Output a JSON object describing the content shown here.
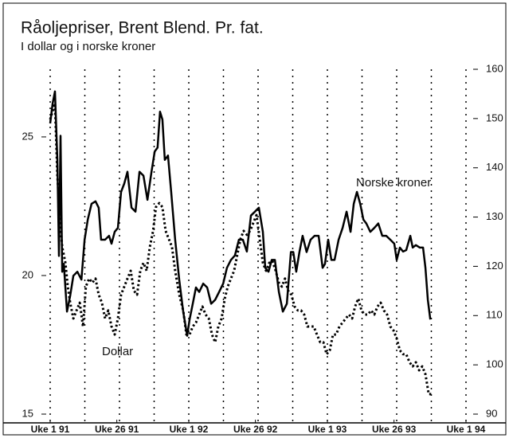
{
  "chart_data": {
    "type": "line",
    "title": "Råoljepriser, Brent Blend. Pr. fat.",
    "subtitle": "I dollar og i norske kroner",
    "xlim": [
      0,
      156
    ],
    "xticks": [
      {
        "value": 0,
        "label": "Uke 1 91"
      },
      {
        "value": 25,
        "label": "Uke 26 91"
      },
      {
        "value": 52,
        "label": "Uke 1 92"
      },
      {
        "value": 77,
        "label": "Uke 26 92"
      },
      {
        "value": 104,
        "label": "Uke 1 93"
      },
      {
        "value": 129,
        "label": "Uke 26 93"
      },
      {
        "value": 156,
        "label": "Uke 1 94"
      }
    ],
    "xgrid": [
      0,
      13,
      26,
      39,
      52,
      65,
      78,
      91,
      104,
      117,
      130,
      143,
      156
    ],
    "ylim": [
      15,
      27.44
    ],
    "yticks": [
      15,
      20,
      25
    ],
    "y2lim": [
      90,
      160
    ],
    "y2ticks": [
      90,
      100,
      110,
      120,
      130,
      140,
      150,
      160
    ],
    "annotations": [
      "Norske kroner",
      "Dollar"
    ],
    "series": [
      {
        "name": "Norske kroner",
        "color": "#000000",
        "style": "solid",
        "axis": "y2",
        "x": [
          0,
          0.9,
          1.8,
          2.7,
          3.3,
          3.9,
          4.5,
          5.1,
          6.3,
          7.5,
          8.7,
          10.2,
          11.7,
          12.9,
          14.1,
          15.5,
          17,
          18.2,
          19.1,
          20.6,
          22.1,
          23,
          24.2,
          25.4,
          26.6,
          27.8,
          29,
          30.5,
          32,
          33.5,
          35,
          36.5,
          38,
          39.2,
          40.3,
          41.2,
          42.1,
          43,
          44.2,
          45.4,
          46.9,
          48.4,
          49.9,
          51.4,
          52.3,
          53.5,
          54.7,
          55.9,
          57.4,
          58.9,
          60.4,
          61.9,
          63.4,
          64.9,
          66.3,
          67.8,
          69.3,
          70.8,
          72.3,
          73.8,
          75.3,
          76.8,
          78.3,
          79.8,
          80.7,
          81.9,
          83.1,
          84.3,
          85.8,
          87.3,
          88.8,
          90.3,
          91.2,
          92.3,
          93.5,
          94.7,
          96.2,
          97.7,
          99.2,
          100.7,
          102.2,
          103.1,
          104.3,
          105.5,
          106.7,
          108.2,
          109.7,
          111.2,
          112.7,
          113.9,
          115.1,
          116.3,
          117.5,
          118.6,
          120.1,
          121.6,
          123.1,
          124.6,
          126.1,
          127.6,
          129.1,
          130,
          131.2,
          132.4,
          133.6,
          135.1,
          136,
          137.2,
          138.7,
          139.9,
          140.8,
          141.7,
          142.6
        ],
        "values": [
          149,
          153,
          155.5,
          141.6,
          122.1,
          146.5,
          118.9,
          120.5,
          110.8,
          114,
          118.1,
          118.9,
          117.3,
          125.4,
          129.5,
          132.7,
          133.2,
          131.9,
          125.4,
          125.4,
          126.2,
          124.6,
          127,
          127.8,
          135.1,
          136.8,
          139.2,
          131.9,
          131.1,
          139.2,
          138.4,
          133.5,
          139.2,
          143.3,
          144.1,
          151.4,
          149.8,
          141.6,
          142.5,
          135.1,
          125.4,
          117.3,
          110.8,
          105.9,
          109.2,
          112.4,
          115.7,
          114.8,
          116.5,
          115.7,
          112.4,
          113.2,
          114.8,
          116.5,
          119.7,
          121.3,
          122.2,
          125.4,
          125.4,
          123,
          130.3,
          131.1,
          131.9,
          127,
          119.7,
          118.9,
          121.3,
          121.3,
          114.8,
          110.8,
          112.4,
          122.9,
          122.9,
          118.9,
          122.9,
          126.2,
          122.9,
          125.4,
          126.2,
          126.2,
          119.7,
          120.5,
          125.4,
          121.3,
          121.3,
          125.4,
          127.8,
          131.1,
          127,
          132.7,
          135.1,
          132.7,
          129.5,
          128.7,
          127,
          127.8,
          128.7,
          126.2,
          126.2,
          125.4,
          124.6,
          121.3,
          123.8,
          123,
          123.3,
          126.2,
          123.8,
          124.3,
          123.8,
          123.8,
          119.7,
          113.2,
          109.2
        ]
      },
      {
        "name": "Dollar",
        "color": "#000000",
        "style": "dotted",
        "axis": "y",
        "x": [
          0,
          0.9,
          1.8,
          2.7,
          3.6,
          4.5,
          5.7,
          6.6,
          7.5,
          8.7,
          9.9,
          11.1,
          12.3,
          13.4,
          14.6,
          15.8,
          17,
          18.2,
          19.4,
          20.6,
          21.8,
          23,
          24.2,
          25.4,
          26.6,
          27.8,
          29,
          30.2,
          31.4,
          32.6,
          33.8,
          35,
          36.2,
          37.4,
          38.6,
          39.7,
          40.9,
          42.1,
          43.3,
          44.5,
          45.7,
          46.9,
          48.4,
          49.9,
          51.1,
          52.3,
          53.5,
          54.7,
          55.9,
          57.1,
          58.3,
          59.5,
          60.7,
          61.9,
          63.1,
          64.3,
          65.5,
          66.6,
          67.8,
          69,
          70.2,
          71.4,
          72.6,
          73.8,
          75,
          76.2,
          77.4,
          78.6,
          79.8,
          81,
          82.2,
          83.4,
          84.6,
          85.8,
          86.9,
          88.1,
          89.3,
          90.5,
          91.7,
          92.9,
          94.1,
          95.3,
          96.5,
          97.7,
          98.9,
          100.1,
          101.3,
          102.5,
          103.7,
          104.9,
          106.1,
          107.3,
          108.5,
          109.7,
          110.9,
          112.1,
          113.3,
          114.4,
          115.6,
          116.8,
          118,
          119.2,
          120.4,
          121.6,
          122.8,
          124,
          125.2,
          126.4,
          127.6,
          128.8,
          130,
          131.2,
          132.4,
          133.6,
          134.8,
          136,
          137.2,
          138.4,
          139.6,
          140.8,
          142,
          143.2
        ],
        "values": [
          25.63,
          25.92,
          26.21,
          23.62,
          22.18,
          21.03,
          20.46,
          19.6,
          19.02,
          18.45,
          18.74,
          19.02,
          18.16,
          19.6,
          19.89,
          19.74,
          19.89,
          19.31,
          19.02,
          18.45,
          18.74,
          18.16,
          17.87,
          18.45,
          19.31,
          19.6,
          19.89,
          20.17,
          19.45,
          19.31,
          20.17,
          20.46,
          20.17,
          21.03,
          21.61,
          22.47,
          22.61,
          22.47,
          21.61,
          21.32,
          21.03,
          20.17,
          19.31,
          18.74,
          17.87,
          17.87,
          18.16,
          18.3,
          18.59,
          18.88,
          18.59,
          18.45,
          17.87,
          17.59,
          18.16,
          18.45,
          19.17,
          19.6,
          19.89,
          20.17,
          20.75,
          21.32,
          21.61,
          21.47,
          21.61,
          21.9,
          22.18,
          21.32,
          20.46,
          20.17,
          20.46,
          20.52,
          20.17,
          19.74,
          19.6,
          19.89,
          19.45,
          19.31,
          18.88,
          18.74,
          18.74,
          18.59,
          18.16,
          18.16,
          18.16,
          17.87,
          17.59,
          17.59,
          17.16,
          17.3,
          17.87,
          17.87,
          18.16,
          18.3,
          18.45,
          18.59,
          18.45,
          18.88,
          19.17,
          18.74,
          18.59,
          18.59,
          18.74,
          18.59,
          18.88,
          19.02,
          18.74,
          18.59,
          18.16,
          18.02,
          17.73,
          17.3,
          17.16,
          17.16,
          16.87,
          16.72,
          16.87,
          16.58,
          16.72,
          16.44,
          15.72,
          15.72
        ]
      }
    ]
  }
}
